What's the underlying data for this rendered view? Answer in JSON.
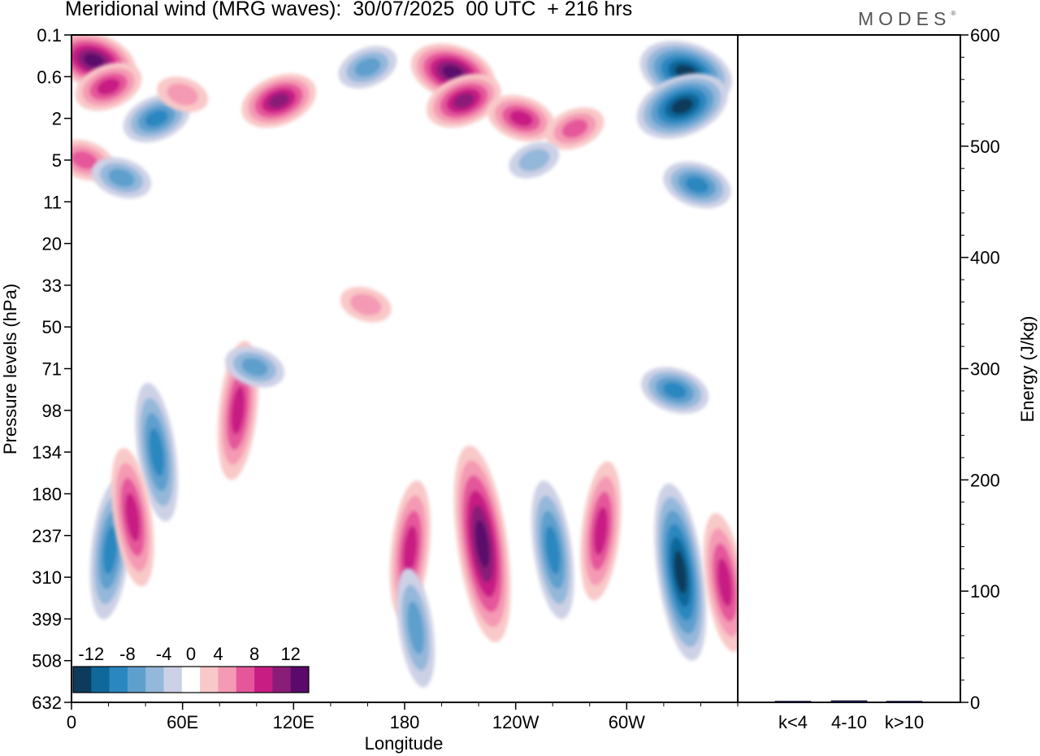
{
  "header": {
    "title": "Meridional wind (MRG waves):  30/07/2025  00 UTC  + 216 hrs",
    "logo_text": "MODES",
    "logo_mark": "®"
  },
  "chart_data": [
    {
      "type": "heatmap",
      "title": "Meridional wind (MRG waves):  30/07/2025  00 UTC  + 216 hrs",
      "xlabel": "Longitude",
      "ylabel": "Pressure levels (hPa)",
      "x_ticks": [
        "0",
        "60E",
        "120E",
        "180",
        "120W",
        "60W"
      ],
      "x_tick_degrees": [
        0,
        60,
        120,
        180,
        240,
        300
      ],
      "xlim": [
        0,
        360
      ],
      "y_ticks": [
        "0.1",
        "0.6",
        "2",
        "5",
        "11",
        "20",
        "33",
        "50",
        "71",
        "98",
        "134",
        "180",
        "237",
        "310",
        "399",
        "508",
        "632"
      ],
      "colorbar": {
        "labels": [
          "-12",
          "-8",
          "-4",
          "0",
          "4",
          "8",
          "12"
        ],
        "levels": [
          -14,
          -12,
          -10,
          -8,
          -6,
          -4,
          -2,
          2,
          4,
          6,
          8,
          10,
          12,
          14
        ],
        "colors": [
          "#0c3b5b",
          "#10679a",
          "#2a87c0",
          "#5f9fcd",
          "#94b8da",
          "#cdd1e6",
          "#ffffff",
          "#f9c8c8",
          "#f49ab4",
          "#e5579a",
          "#c81e84",
          "#8a1d78",
          "#5a0a6a"
        ]
      },
      "features": [
        {
          "lon": 12,
          "level": "0.3",
          "value": 12
        },
        {
          "lon": 20,
          "level": "0.8",
          "value": 8
        },
        {
          "lon": 7,
          "level": "5",
          "value": 6
        },
        {
          "lon": 46,
          "level": "2",
          "value": -8
        },
        {
          "lon": 27,
          "level": "7",
          "value": -6
        },
        {
          "lon": 112,
          "level": "1.2",
          "value": 10
        },
        {
          "lon": 60,
          "level": "1",
          "value": 4
        },
        {
          "lon": 160,
          "level": "0.4",
          "value": -6
        },
        {
          "lon": 206,
          "level": "0.5",
          "value": 12
        },
        {
          "lon": 212,
          "level": "1.2",
          "value": 10
        },
        {
          "lon": 243,
          "level": "2",
          "value": 8
        },
        {
          "lon": 272,
          "level": "2.5",
          "value": 6
        },
        {
          "lon": 332,
          "level": "0.5",
          "value": -14
        },
        {
          "lon": 330,
          "level": "1.4",
          "value": -14
        },
        {
          "lon": 338,
          "level": "8",
          "value": -8
        },
        {
          "lon": 250,
          "level": "5",
          "value": -4
        },
        {
          "lon": 90,
          "level": "98",
          "value": 8
        },
        {
          "lon": 46,
          "level": "134",
          "value": -8
        },
        {
          "lon": 21,
          "level": "260",
          "value": -8
        },
        {
          "lon": 33,
          "level": "210",
          "value": 8
        },
        {
          "lon": 99,
          "level": "70",
          "value": -6
        },
        {
          "lon": 222,
          "level": "250",
          "value": 14
        },
        {
          "lon": 183,
          "level": "260",
          "value": 8
        },
        {
          "lon": 260,
          "level": "260",
          "value": -8
        },
        {
          "lon": 286,
          "level": "230",
          "value": 8
        },
        {
          "lon": 329,
          "level": "300",
          "value": -12
        },
        {
          "lon": 326,
          "level": "84",
          "value": -8
        },
        {
          "lon": 353,
          "level": "320",
          "value": 8
        },
        {
          "lon": 159,
          "level": "40",
          "value": 4
        },
        {
          "lon": 186,
          "level": "420",
          "value": -6
        }
      ]
    },
    {
      "type": "bar",
      "categories": [
        "k<4",
        "4-10",
        "k>10"
      ],
      "values": [
        0.5,
        1.5,
        0.5
      ],
      "ylabel": "Energy (J/kg)",
      "ylim": [
        0,
        600
      ],
      "y_ticks": [
        0,
        100,
        200,
        300,
        400,
        500,
        600
      ]
    }
  ]
}
